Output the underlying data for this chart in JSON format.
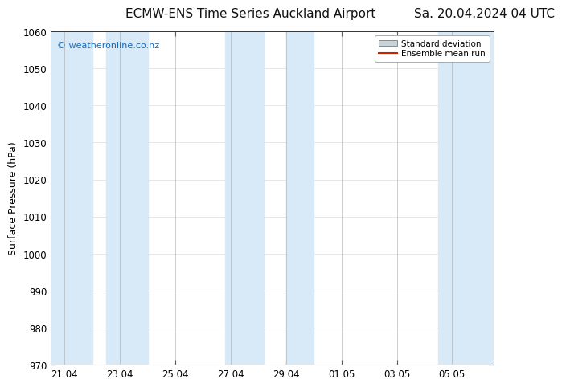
{
  "title_left": "ECMW-ENS Time Series Auckland Airport",
  "title_right": "Sa. 20.04.2024 04 UTC",
  "ylabel": "Surface Pressure (hPa)",
  "watermark": "© weatheronline.co.nz",
  "watermark_color": "#1a6ab5",
  "ylim": [
    970,
    1060
  ],
  "yticks": [
    970,
    980,
    990,
    1000,
    1010,
    1020,
    1030,
    1040,
    1050,
    1060
  ],
  "xtick_labels": [
    "21.04",
    "23.04",
    "25.04",
    "27.04",
    "29.04",
    "01.05",
    "03.05",
    "05.05"
  ],
  "bg_color": "#ffffff",
  "plot_bg_color": "#ffffff",
  "shaded_band_color": "#d8eaf8",
  "legend_std_color": "#c8d4dc",
  "legend_mean_color": "#cc2200",
  "title_fontsize": 11,
  "tick_fontsize": 8.5,
  "ylabel_fontsize": 9
}
